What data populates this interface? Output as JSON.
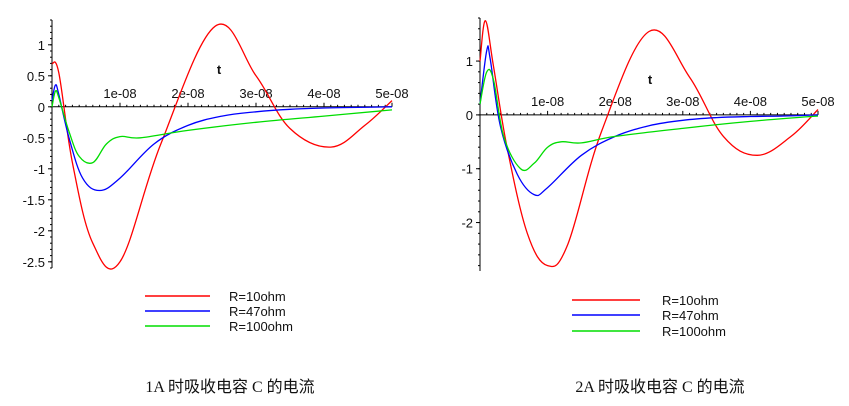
{
  "chart_data": [
    {
      "type": "line",
      "caption": "1A 时吸收电容 C 的电流",
      "xlabel": "t",
      "xlim": [
        0,
        5e-08
      ],
      "ylim": [
        -2.6,
        1.4
      ],
      "x_ticks": [
        {
          "v": 1e-08,
          "label": "1e-08"
        },
        {
          "v": 2e-08,
          "label": "2e-08"
        },
        {
          "v": 3e-08,
          "label": "3e-08"
        },
        {
          "v": 4e-08,
          "label": "4e-08"
        },
        {
          "v": 5e-08,
          "label": "5e-08"
        }
      ],
      "y_ticks": [
        {
          "v": 1,
          "label": "1"
        },
        {
          "v": 0.5,
          "label": "0.5"
        },
        {
          "v": 0,
          "label": "0"
        },
        {
          "v": -0.5,
          "label": "-0.5"
        },
        {
          "v": -1,
          "label": "-1"
        },
        {
          "v": -1.5,
          "label": "-1.5"
        },
        {
          "v": -2,
          "label": "-2"
        },
        {
          "v": -2.5,
          "label": "-2.5"
        }
      ],
      "series": [
        {
          "name": "R=10ohm",
          "color": "#ff0000",
          "x": [
            0,
            1e-09,
            3e-09,
            6e-09,
            1e-08,
            1.6e-08,
            2.4e-08,
            3e-08,
            3.5e-08,
            4.1e-08,
            4.6e-08,
            5e-08
          ],
          "y": [
            0.7,
            0.55,
            -0.9,
            -2.2,
            -2.5,
            -0.6,
            1.3,
            0.5,
            -0.35,
            -0.65,
            -0.3,
            0.1
          ]
        },
        {
          "name": "R=47ohm",
          "color": "#0000ff",
          "x": [
            0,
            5e-10,
            1e-09,
            2.5e-09,
            4.5e-09,
            7e-09,
            1e-08,
            1.5e-08,
            2e-08,
            2.5e-08,
            3e-08,
            3.5e-08,
            4e-08,
            4.5e-08,
            5e-08
          ],
          "y": [
            0.1,
            0.35,
            0.2,
            -0.5,
            -1.15,
            -1.35,
            -1.15,
            -0.6,
            -0.3,
            -0.15,
            -0.08,
            -0.04,
            -0.02,
            -0.01,
            0
          ]
        },
        {
          "name": "R=100ohm",
          "color": "#00dd00",
          "x": [
            0,
            5e-10,
            1e-09,
            2.5e-09,
            4e-09,
            6e-09,
            8e-09,
            1e-08,
            1.3e-08,
            2e-08,
            3e-08,
            4e-08,
            5e-08
          ],
          "y": [
            0,
            0.25,
            0.15,
            -0.4,
            -0.8,
            -0.9,
            -0.6,
            -0.48,
            -0.5,
            -0.38,
            -0.25,
            -0.15,
            -0.05
          ]
        }
      ]
    },
    {
      "type": "line",
      "caption": "2A 时吸收电容 C 的电流",
      "xlabel": "t",
      "xlim": [
        0,
        5e-08
      ],
      "ylim": [
        -2.9,
        1.8
      ],
      "x_ticks": [
        {
          "v": 1e-08,
          "label": "1e-08"
        },
        {
          "v": 2e-08,
          "label": "2e-08"
        },
        {
          "v": 3e-08,
          "label": "3e-08"
        },
        {
          "v": 4e-08,
          "label": "4e-08"
        },
        {
          "v": 5e-08,
          "label": "5e-08"
        }
      ],
      "y_ticks": [
        {
          "v": 1,
          "label": "1"
        },
        {
          "v": 0,
          "label": "0"
        },
        {
          "v": -1,
          "label": "-1"
        },
        {
          "v": -2,
          "label": "-2"
        }
      ],
      "series": [
        {
          "name": "R=10ohm",
          "color": "#ff0000",
          "x": [
            0,
            8e-10,
            2e-09,
            4e-09,
            7e-09,
            1e-08,
            1.3e-08,
            1.8e-08,
            2.5e-08,
            3.1e-08,
            3.6e-08,
            4.1e-08,
            4.6e-08,
            5e-08
          ],
          "y": [
            1.0,
            1.75,
            0.9,
            -0.6,
            -2.2,
            -2.8,
            -2.4,
            -0.3,
            1.55,
            0.7,
            -0.4,
            -0.75,
            -0.4,
            0.1
          ]
        },
        {
          "name": "R=47ohm",
          "color": "#0000ff",
          "x": [
            0,
            1e-09,
            1.5e-09,
            3e-09,
            5.5e-09,
            8e-09,
            1e-08,
            1.5e-08,
            2e-08,
            2.5e-08,
            3e-08,
            3.5e-08,
            4e-08,
            4.5e-08,
            5e-08
          ],
          "y": [
            0.2,
            1.2,
            1.05,
            -0.2,
            -1.1,
            -1.48,
            -1.35,
            -0.75,
            -0.4,
            -0.2,
            -0.1,
            -0.05,
            -0.03,
            -0.02,
            0
          ]
        },
        {
          "name": "R=100ohm",
          "color": "#00dd00",
          "x": [
            0,
            1e-09,
            2e-09,
            3.5e-09,
            6e-09,
            8e-09,
            1e-08,
            1.2e-08,
            1.5e-08,
            2e-08,
            3e-08,
            4e-08,
            5e-08
          ],
          "y": [
            0.2,
            0.8,
            0.65,
            -0.4,
            -1.0,
            -0.9,
            -0.6,
            -0.5,
            -0.52,
            -0.4,
            -0.25,
            -0.12,
            -0.02
          ]
        }
      ]
    }
  ]
}
